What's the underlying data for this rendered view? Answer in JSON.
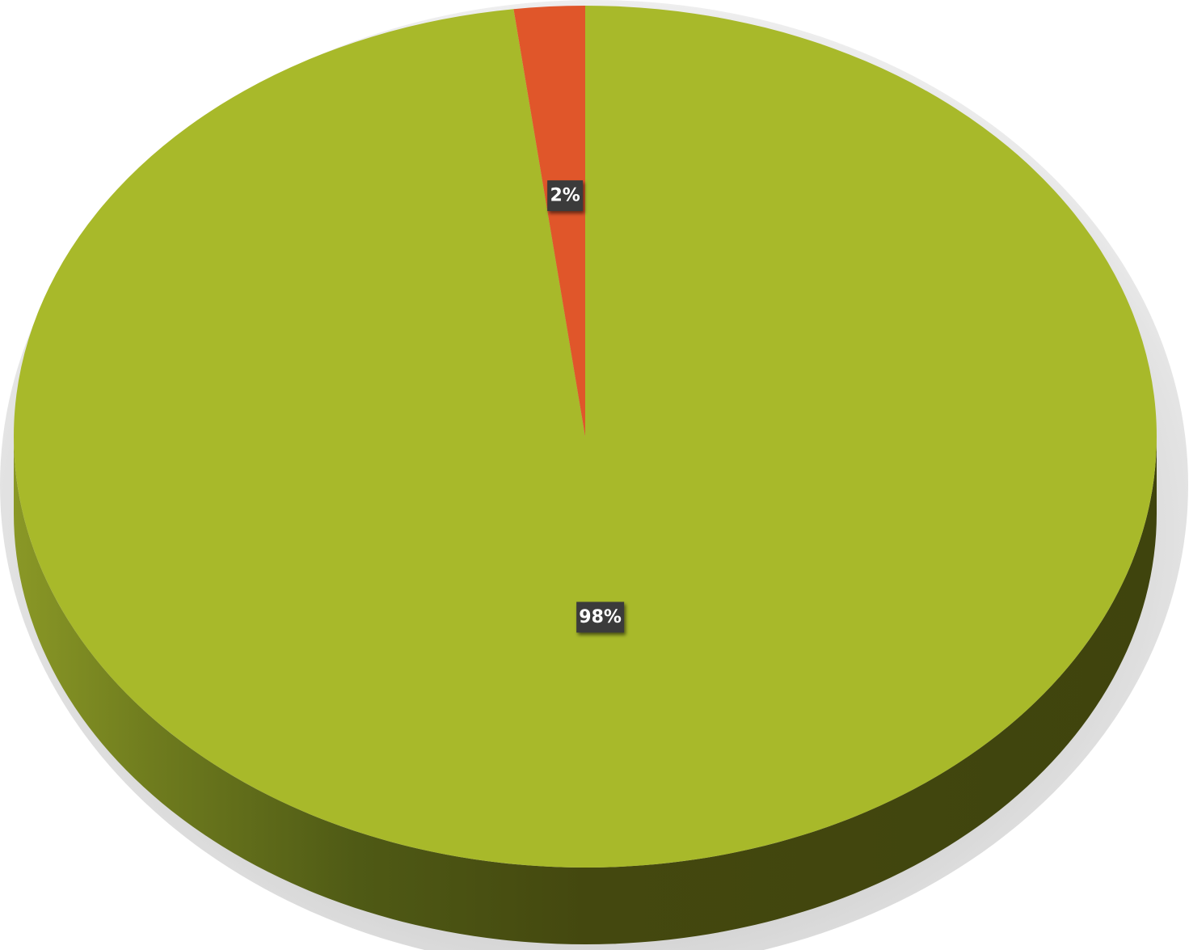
{
  "chart_data": {
    "type": "pie",
    "style": "3d",
    "slices": [
      {
        "value": 98,
        "label": "98%",
        "color": "#a8b92a",
        "side_color": "#44480f"
      },
      {
        "value": 2,
        "label": "2%",
        "color": "#e0562a",
        "side_color": "#7a2a10"
      }
    ],
    "legend": "none"
  }
}
